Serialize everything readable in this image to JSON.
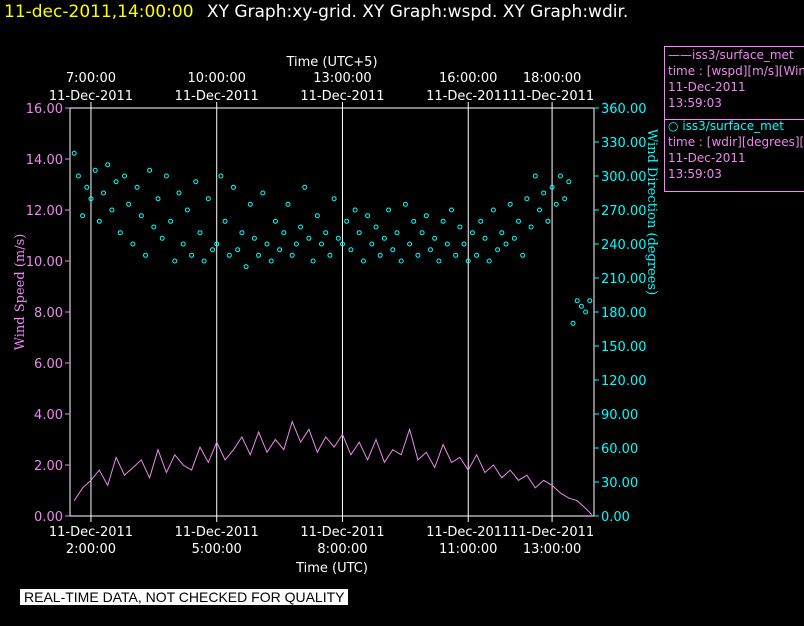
{
  "header": {
    "timestamp": "11-dec-2011,14:00:00",
    "titles": "XY Graph:xy-grid.  XY Graph:wspd.  XY Graph:wdir."
  },
  "legend": {
    "wspd": {
      "name": "iss3/surface_met",
      "line2": "time : [wspd][m/s][Wind",
      "date": "11-Dec-2011",
      "time": "13:59:03"
    },
    "wdir": {
      "name": "iss3/surface_met",
      "line2": "time : [wdir][degrees][W",
      "date": "11-Dec-2011",
      "time": "13:59:03"
    }
  },
  "footer": {
    "note": "REAL-TIME DATA, NOT CHECKED FOR QUALITY"
  },
  "colors": {
    "wspd": "#ee88ee",
    "wdir": "#00ffff",
    "grid": "#ffffff",
    "label": "#ee88ee"
  },
  "chart_data": {
    "type": "line",
    "xlabel_bottom": "Time (UTC)",
    "xlabel_top": "Time (UTC+5)",
    "ylabel_left": "Wind Speed (m/s)",
    "ylabel_right": "Wind Direction (degrees)",
    "xlim": [
      1.5,
      14.0
    ],
    "ylim_left": [
      0,
      16
    ],
    "ylim_right": [
      0,
      360
    ],
    "bottom_ticks": [
      {
        "hour": 2,
        "date": "11-Dec-2011",
        "time": "2:00:00"
      },
      {
        "hour": 5,
        "date": "11-Dec-2011",
        "time": "5:00:00"
      },
      {
        "hour": 8,
        "date": "11-Dec-2011",
        "time": "8:00:00"
      },
      {
        "hour": 11,
        "date": "11-Dec-2011",
        "time": "11:00:00"
      },
      {
        "hour": 13,
        "date": "11-Dec-2011",
        "time": "13:00:00"
      }
    ],
    "top_ticks": [
      {
        "hour": 2,
        "time": "7:00:00",
        "date": "11-Dec-2011"
      },
      {
        "hour": 5,
        "time": "10:00:00",
        "date": "11-Dec-2011"
      },
      {
        "hour": 8,
        "time": "13:00:00",
        "date": "11-Dec-2011"
      },
      {
        "hour": 11,
        "time": "16:00:00",
        "date": "11-Dec-2011"
      },
      {
        "hour": 13,
        "time": "18:00:00",
        "date": "11-Dec-2011"
      }
    ],
    "left_ticks": [
      "0.00",
      "2.00",
      "4.00",
      "6.00",
      "8.00",
      "10.00",
      "12.00",
      "14.00",
      "16.00"
    ],
    "right_ticks": [
      "0.00",
      "30.00",
      "60.00",
      "90.00",
      "120.00",
      "150.00",
      "180.00",
      "210.00",
      "240.00",
      "270.00",
      "300.00",
      "330.00",
      "360.00"
    ],
    "series": [
      {
        "name": "iss3/surface_met",
        "variable": "wspd",
        "axis": "left",
        "style": "line",
        "x": [
          1.6,
          1.8,
          2.0,
          2.2,
          2.4,
          2.6,
          2.8,
          3.0,
          3.2,
          3.4,
          3.6,
          3.8,
          4.0,
          4.2,
          4.4,
          4.6,
          4.8,
          5.0,
          5.2,
          5.4,
          5.6,
          5.8,
          6.0,
          6.2,
          6.4,
          6.6,
          6.8,
          7.0,
          7.2,
          7.4,
          7.6,
          7.8,
          8.0,
          8.2,
          8.4,
          8.6,
          8.8,
          9.0,
          9.2,
          9.4,
          9.6,
          9.8,
          10.0,
          10.2,
          10.4,
          10.6,
          10.8,
          11.0,
          11.2,
          11.4,
          11.6,
          11.8,
          12.0,
          12.2,
          12.4,
          12.6,
          12.8,
          13.0,
          13.2,
          13.4,
          13.6,
          13.8,
          13.95
        ],
        "y": [
          0.6,
          1.1,
          1.4,
          1.8,
          1.2,
          2.3,
          1.6,
          1.9,
          2.2,
          1.5,
          2.6,
          1.7,
          2.4,
          2.0,
          1.8,
          2.7,
          2.1,
          2.9,
          2.2,
          2.6,
          3.1,
          2.4,
          3.3,
          2.5,
          3.0,
          2.6,
          3.7,
          2.9,
          3.4,
          2.5,
          3.1,
          2.7,
          3.2,
          2.4,
          2.9,
          2.2,
          3.0,
          2.1,
          2.6,
          2.4,
          3.4,
          2.2,
          2.5,
          1.9,
          2.8,
          2.1,
          2.3,
          1.8,
          2.4,
          1.7,
          2.0,
          1.5,
          1.8,
          1.4,
          1.6,
          1.1,
          1.4,
          1.2,
          0.9,
          0.7,
          0.6,
          0.3,
          0.05
        ]
      },
      {
        "name": "iss3/surface_met",
        "variable": "wdir",
        "axis": "right",
        "style": "scatter",
        "x": [
          1.6,
          1.7,
          1.8,
          1.9,
          2.0,
          2.1,
          2.2,
          2.3,
          2.4,
          2.5,
          2.6,
          2.7,
          2.8,
          2.9,
          3.0,
          3.1,
          3.2,
          3.3,
          3.4,
          3.5,
          3.6,
          3.7,
          3.8,
          3.9,
          4.0,
          4.1,
          4.2,
          4.3,
          4.4,
          4.5,
          4.6,
          4.7,
          4.8,
          4.9,
          5.0,
          5.1,
          5.2,
          5.3,
          5.4,
          5.5,
          5.6,
          5.7,
          5.8,
          5.9,
          6.0,
          6.1,
          6.2,
          6.3,
          6.4,
          6.5,
          6.6,
          6.7,
          6.8,
          6.9,
          7.0,
          7.1,
          7.2,
          7.3,
          7.4,
          7.5,
          7.6,
          7.7,
          7.8,
          7.9,
          8.0,
          8.1,
          8.2,
          8.3,
          8.4,
          8.5,
          8.6,
          8.7,
          8.8,
          8.9,
          9.0,
          9.1,
          9.2,
          9.3,
          9.4,
          9.5,
          9.6,
          9.7,
          9.8,
          9.9,
          10.0,
          10.1,
          10.2,
          10.3,
          10.4,
          10.5,
          10.6,
          10.7,
          10.8,
          10.9,
          11.0,
          11.1,
          11.2,
          11.3,
          11.4,
          11.5,
          11.6,
          11.7,
          11.8,
          11.9,
          12.0,
          12.1,
          12.2,
          12.3,
          12.4,
          12.5,
          12.6,
          12.7,
          12.8,
          12.9,
          13.0,
          13.1,
          13.2,
          13.3,
          13.4,
          13.5,
          13.6,
          13.7,
          13.8,
          13.9
        ],
        "y": [
          320,
          300,
          265,
          290,
          280,
          305,
          260,
          285,
          310,
          270,
          295,
          250,
          300,
          275,
          240,
          290,
          265,
          230,
          305,
          255,
          280,
          245,
          300,
          260,
          225,
          285,
          240,
          270,
          230,
          295,
          250,
          225,
          280,
          235,
          240,
          300,
          260,
          230,
          290,
          235,
          250,
          220,
          275,
          245,
          230,
          285,
          240,
          225,
          260,
          235,
          250,
          275,
          230,
          240,
          255,
          290,
          245,
          225,
          265,
          240,
          250,
          230,
          280,
          245,
          240,
          260,
          235,
          270,
          250,
          225,
          265,
          240,
          255,
          230,
          245,
          270,
          235,
          250,
          225,
          275,
          240,
          260,
          230,
          250,
          265,
          235,
          245,
          225,
          260,
          240,
          270,
          230,
          255,
          240,
          225,
          250,
          230,
          260,
          245,
          225,
          270,
          235,
          250,
          240,
          275,
          245,
          260,
          230,
          280,
          255,
          300,
          270,
          285,
          260,
          290,
          275,
          300,
          280,
          295,
          170,
          190,
          185,
          180,
          190
        ]
      }
    ]
  }
}
